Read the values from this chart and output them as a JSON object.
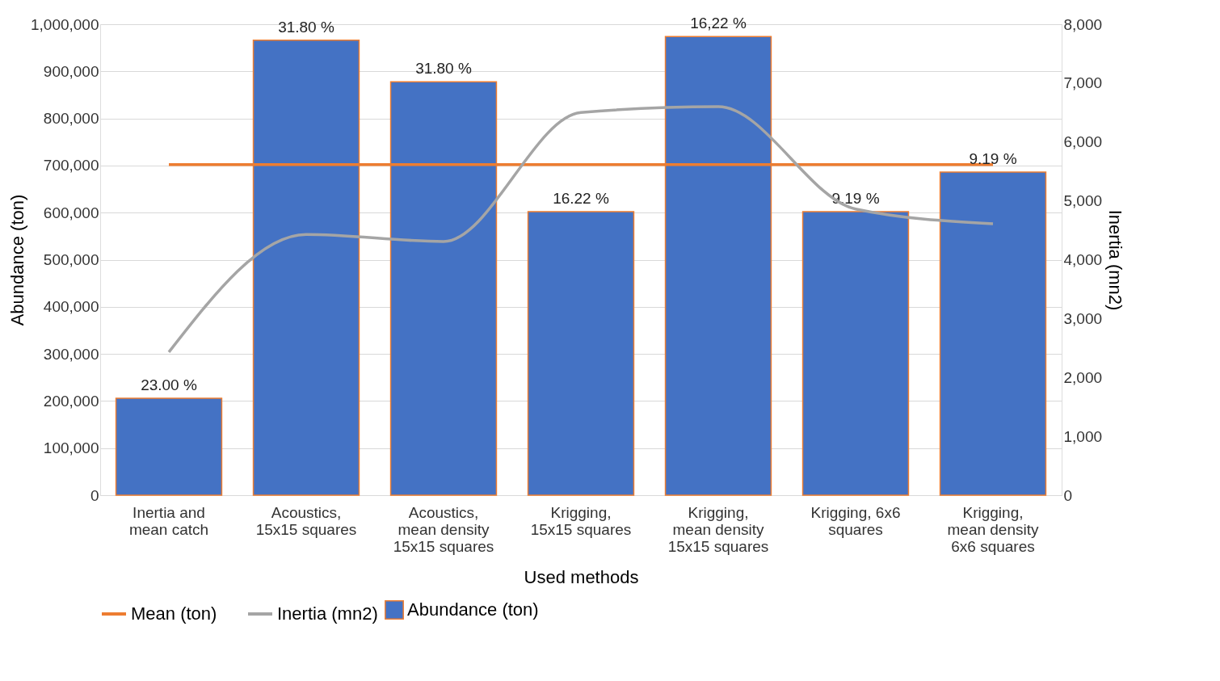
{
  "chart_data": {
    "type": "bar",
    "xlabel": "Used methods",
    "ylabel": "Abundance (ton)",
    "y2label": "Inertia (mn2)",
    "categories": [
      "Inertia and mean catch",
      "Acoustics, 15x15 squares",
      "Acoustics, mean density 15x15 squares",
      "Krigging, 15x15 squares",
      "Krigging, mean density 15x15 squares",
      "Krigging, 6x6 squares",
      "Krigging, mean density 6x6 squares"
    ],
    "series": [
      {
        "name": "Abundance (ton)",
        "type": "bar",
        "color": "#4472c4",
        "values": [
          206000,
          966000,
          878000,
          602000,
          974000,
          602000,
          686000
        ]
      },
      {
        "name": "Mean (ton)",
        "type": "line",
        "color": "#ed7d31",
        "values": [
          702000,
          702000,
          702000,
          702000,
          702000,
          702000,
          702000
        ]
      },
      {
        "name": "Inertia (mn2)",
        "type": "line",
        "axis": "y2",
        "color": "#a5a5a5",
        "values": [
          2430,
          4430,
          4310,
          6500,
          6600,
          4860,
          4610
        ]
      }
    ],
    "annotations": [
      {
        "text": "23.00 %",
        "x": "Inertia and mean catch",
        "y": 206000
      },
      {
        "text": "31.80 %",
        "x": "Acoustics, 15x15 squares",
        "y": 966000
      },
      {
        "text": "31.80 %",
        "x": "Acoustics, mean density 15x15 squares",
        "y": 878000
      },
      {
        "text": "16.22 %",
        "x": "Krigging, 15x15 squares",
        "y": 602000
      },
      {
        "text": "16,22 %",
        "x": "Krigging, mean density 15x15 squares",
        "y": 974000
      },
      {
        "text": "9.19 %",
        "x": "Krigging, 6x6 squares",
        "y": 602000
      },
      {
        "text": "9.19 %",
        "x": "Krigging, mean density 6x6 squares",
        "y": 686000
      }
    ],
    "ylim": [
      0,
      1000000
    ],
    "yticks": [
      0,
      {
        "value": 100000,
        "label": "100,000"
      },
      {
        "value": 200000,
        "label": "200,000"
      },
      {
        "value": 300000,
        "label": "300,000"
      },
      {
        "value": 400000,
        "label": "400,000"
      },
      {
        "value": 500000,
        "label": "500,000"
      },
      {
        "value": 600000,
        "label": "600,000"
      },
      {
        "value": 700000,
        "label": "700,000"
      },
      {
        "value": 800000,
        "label": "800,000"
      },
      {
        "value": 900000,
        "label": "900,000"
      },
      {
        "value": 1000000,
        "label": "1,000,000"
      }
    ],
    "y2lim": [
      0,
      8000
    ],
    "y2ticks": [
      0,
      {
        "value": 1000,
        "label": "1,000"
      },
      {
        "value": 2000,
        "label": "2,000"
      },
      {
        "value": 3000,
        "label": "3,000"
      },
      {
        "value": 4000,
        "label": "4,000"
      },
      {
        "value": 5000,
        "label": "5,000"
      },
      {
        "value": 6000,
        "label": "6,000"
      },
      {
        "value": 7000,
        "label": "7,000"
      },
      {
        "value": 8000,
        "label": "8,000"
      }
    ],
    "grid": "y",
    "legend": "bottom"
  }
}
